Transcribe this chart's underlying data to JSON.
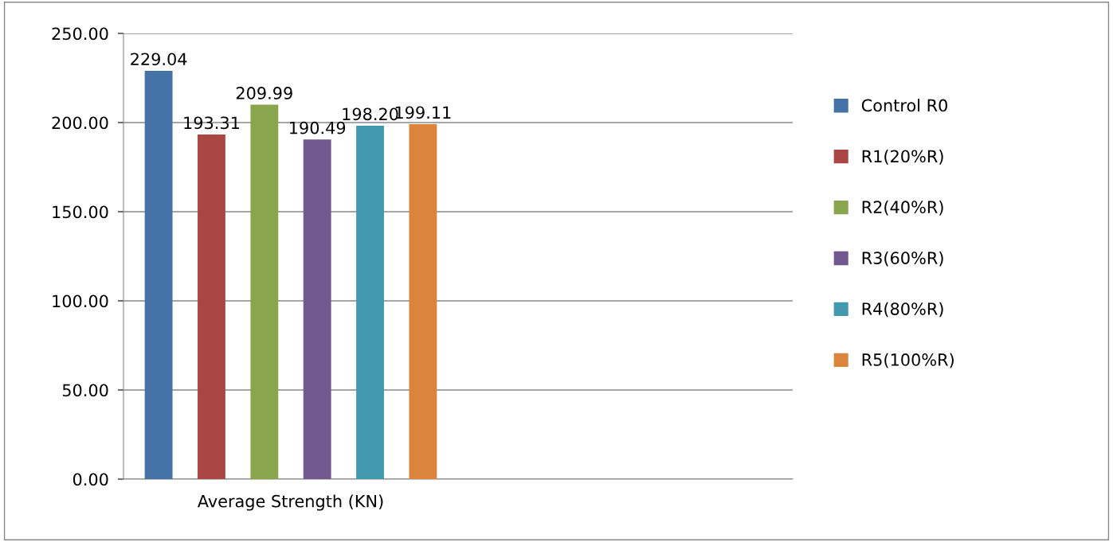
{
  "chart_data": {
    "type": "bar",
    "categories": [
      "Average Strength (KN)",
      null
    ],
    "series": [
      {
        "name": "Control R0",
        "color": "#4572a7",
        "values": [
          229.04,
          null
        ],
        "value_labels": [
          "229.04",
          null
        ]
      },
      {
        "name": "R1(20%R)",
        "color": "#aa4643",
        "values": [
          193.31,
          null
        ],
        "value_labels": [
          "193.31",
          null
        ]
      },
      {
        "name": "R2(40%R)",
        "color": "#89a54e",
        "values": [
          209.99,
          null
        ],
        "value_labels": [
          "209.99",
          null
        ]
      },
      {
        "name": "R3(60%R)",
        "color": "#71588f",
        "values": [
          190.49,
          null
        ],
        "value_labels": [
          "190.49",
          null
        ]
      },
      {
        "name": "R4(80%R)",
        "color": "#4198af",
        "values": [
          198.2,
          null
        ],
        "value_labels": [
          "198.20",
          null
        ]
      },
      {
        "name": "R5(100%R)",
        "color": "#db843d",
        "values": [
          199.11,
          null
        ],
        "value_labels": [
          "199.11",
          null
        ]
      }
    ],
    "ylim": [
      0,
      250
    ],
    "yticks": [
      {
        "value": 0,
        "label": "0.00"
      },
      {
        "value": 50,
        "label": "50.00"
      },
      {
        "value": 100,
        "label": "100.00"
      },
      {
        "value": 150,
        "label": "150.00"
      },
      {
        "value": 200,
        "label": "200.00"
      },
      {
        "value": 250,
        "label": "250.00"
      }
    ],
    "grid": "y",
    "legend": "right"
  }
}
